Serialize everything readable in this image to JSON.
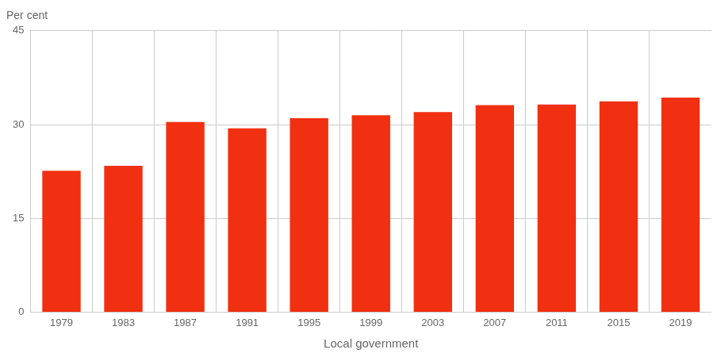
{
  "chart_data": {
    "type": "bar",
    "categories": [
      "1979",
      "1983",
      "1987",
      "1991",
      "1995",
      "1999",
      "2003",
      "2007",
      "2011",
      "2015",
      "2019"
    ],
    "values": [
      22.6,
      23.4,
      30.4,
      29.4,
      31.0,
      31.5,
      32.0,
      33.1,
      33.2,
      33.7,
      34.3
    ],
    "color": "#f03010",
    "xlabel": "Local government",
    "ylabel": "Per cent",
    "ylim": [
      0,
      45
    ],
    "yticks": [
      0,
      15,
      30,
      45
    ],
    "grid": true
  }
}
